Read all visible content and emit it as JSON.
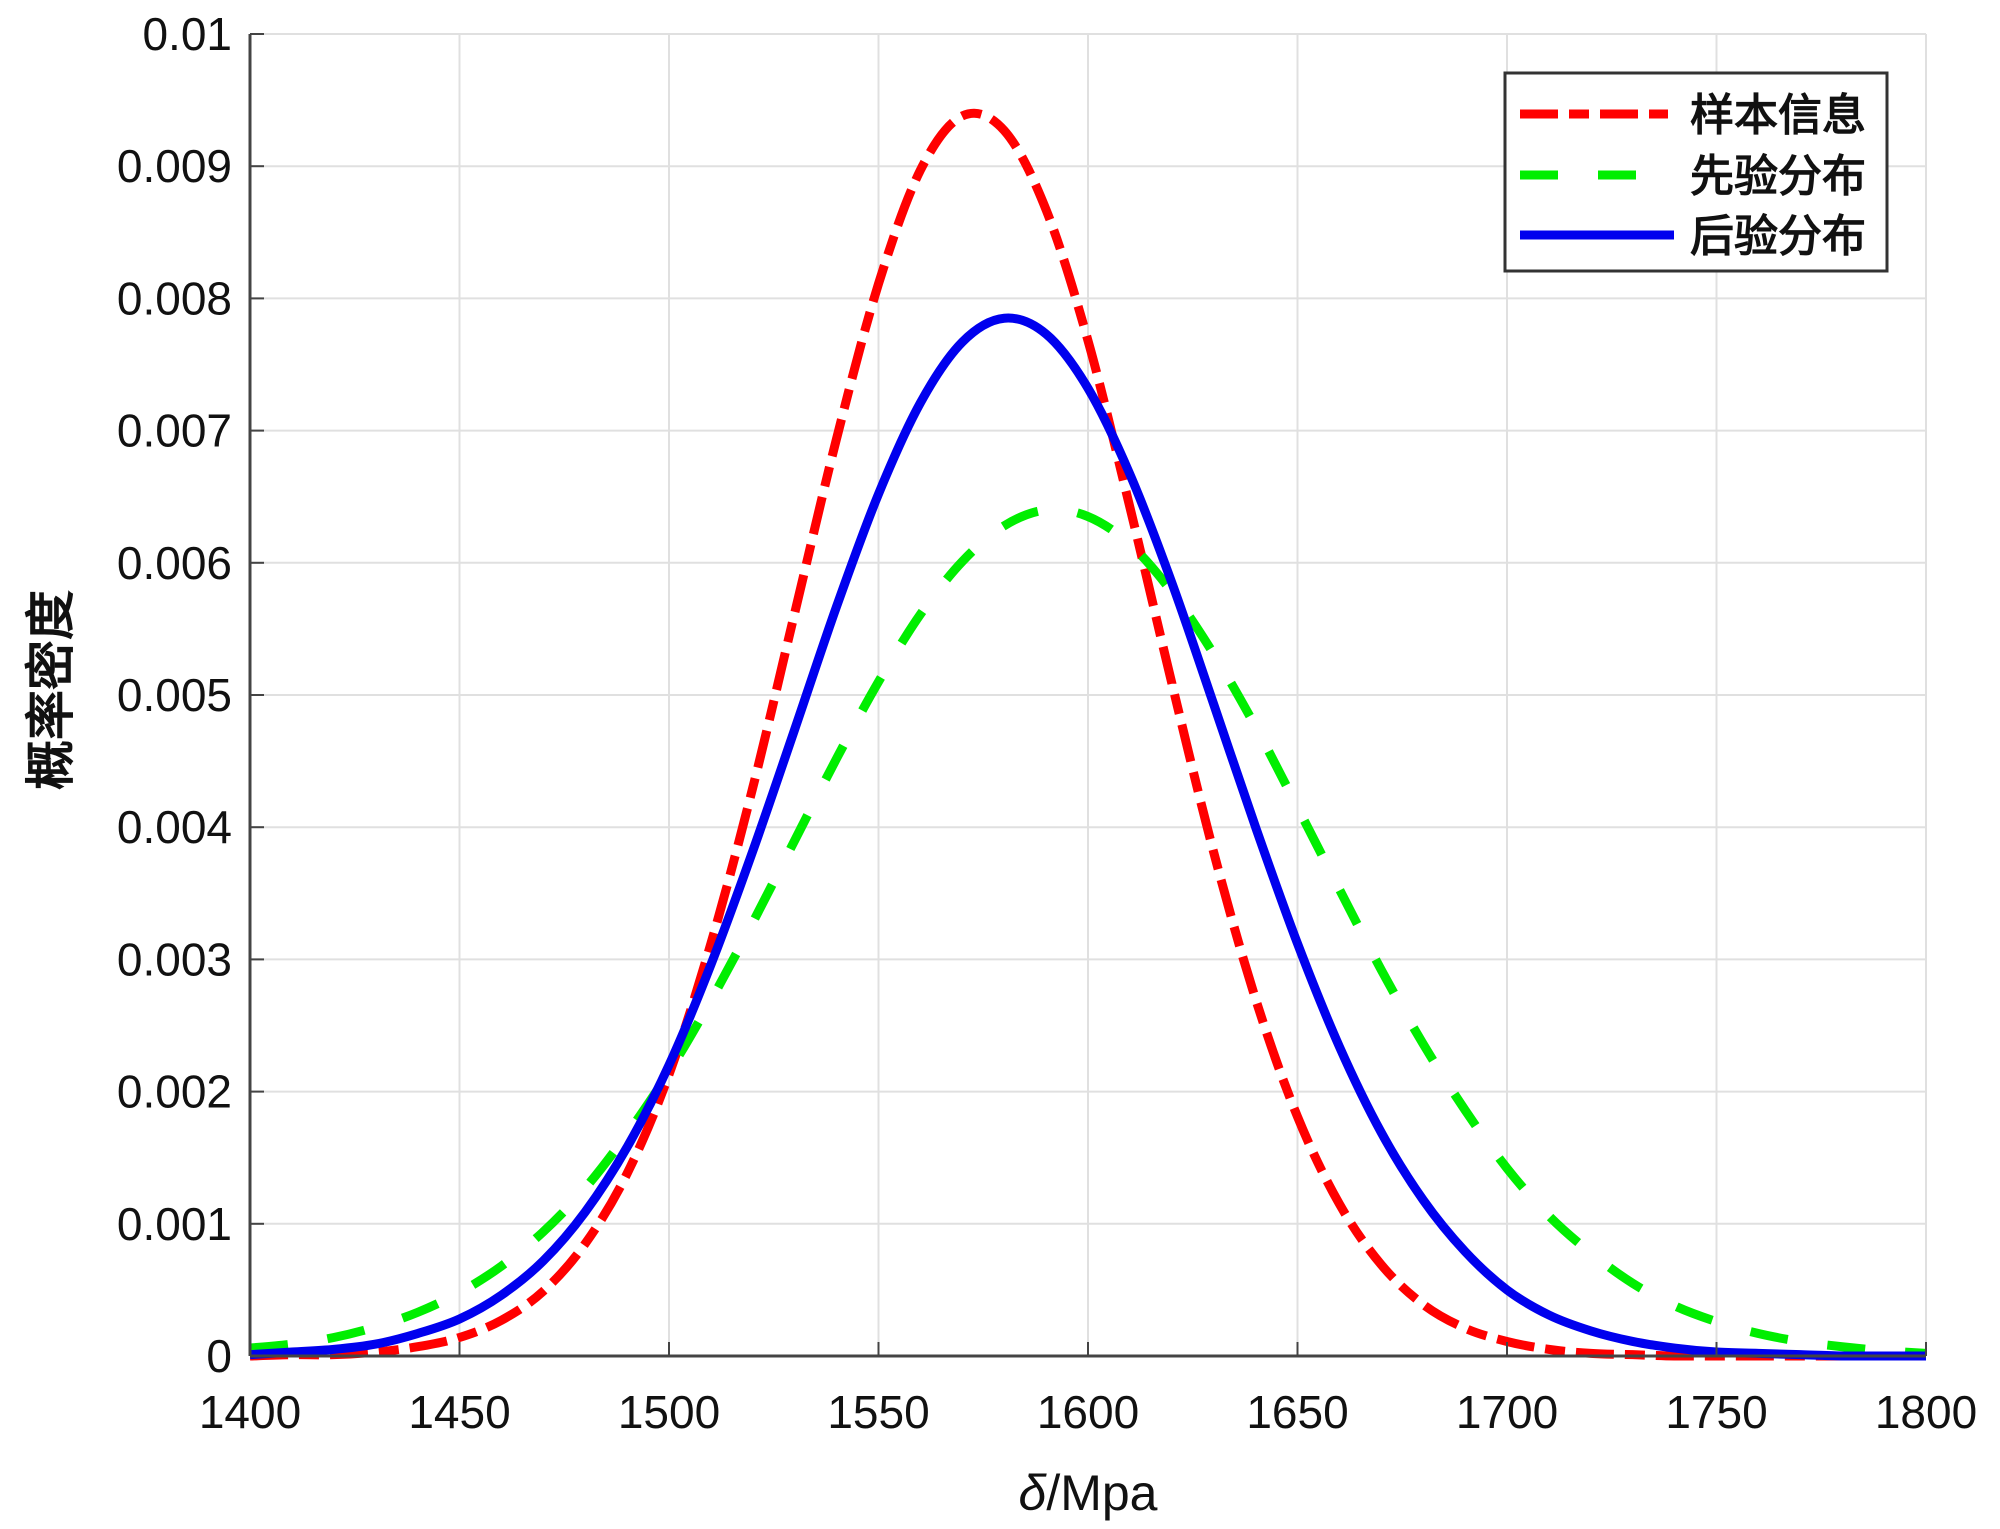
{
  "chart_data": {
    "type": "line",
    "xlabel_symbol": "δ",
    "xlabel_unit": "/Mpa",
    "ylabel": "概率密度",
    "xlim": [
      1400,
      1800
    ],
    "ylim": [
      0,
      0.01
    ],
    "x_ticks": [
      "1400",
      "1450",
      "1500",
      "1550",
      "1600",
      "1650",
      "1700",
      "1750",
      "1800"
    ],
    "y_ticks": [
      "0",
      "0.001",
      "0.002",
      "0.003",
      "0.004",
      "0.005",
      "0.006",
      "0.007",
      "0.008",
      "0.009",
      "0.01"
    ],
    "grid": true,
    "legend_position": "top-right",
    "x": [
      1400,
      1410,
      1420,
      1430,
      1440,
      1450,
      1460,
      1470,
      1480,
      1490,
      1500,
      1510,
      1520,
      1530,
      1540,
      1550,
      1560,
      1570,
      1580,
      1590,
      1600,
      1610,
      1620,
      1630,
      1640,
      1650,
      1660,
      1670,
      1680,
      1690,
      1700,
      1710,
      1720,
      1730,
      1740,
      1750,
      1760,
      1770,
      1780,
      1790,
      1800
    ],
    "series": [
      {
        "name": "样本信息",
        "color": "#ff0000",
        "style": "dash-dot",
        "values": [
          0,
          1e-05,
          1e-05,
          3e-05,
          7e-05,
          0.00014,
          0.00027,
          0.00049,
          0.00085,
          0.00138,
          0.00213,
          0.00312,
          0.0043,
          0.00562,
          0.00694,
          0.00811,
          0.00897,
          0.00938,
          0.00927,
          0.00867,
          0.00768,
          0.00642,
          0.00509,
          0.00381,
          0.0027,
          0.00181,
          0.00115,
          0.00069,
          0.00039,
          0.00021,
          0.00011,
          5e-05,
          2e-05,
          1e-05,
          0,
          0,
          0,
          0,
          0,
          0,
          0
        ]
      },
      {
        "name": "先验分布",
        "color": "#00ee00",
        "style": "dashed",
        "values": [
          6e-05,
          9e-05,
          0.00014,
          0.00022,
          0.00033,
          0.00048,
          0.00068,
          0.00094,
          0.00127,
          0.00168,
          0.00215,
          0.00269,
          0.00328,
          0.0039,
          0.00452,
          0.0051,
          0.00561,
          0.00601,
          0.00628,
          0.0064,
          0.00635,
          0.00614,
          0.00578,
          0.00531,
          0.00476,
          0.00415,
          0.00353,
          0.00292,
          0.00236,
          0.00186,
          0.00142,
          0.00106,
          0.00078,
          0.00055,
          0.00038,
          0.00026,
          0.00017,
          0.00011,
          7e-05,
          4e-05,
          2e-05
        ]
      },
      {
        "name": "后验分布",
        "color": "#0000ee",
        "style": "solid",
        "values": [
          1e-05,
          3e-05,
          5e-05,
          9e-05,
          0.00017,
          0.00028,
          0.00046,
          0.00072,
          0.00109,
          0.00158,
          0.0022,
          0.00296,
          0.00382,
          0.00474,
          0.00567,
          0.00652,
          0.00721,
          0.00767,
          0.00785,
          0.00773,
          0.00732,
          0.00667,
          0.00585,
          0.00493,
          0.004,
          0.00312,
          0.00234,
          0.00169,
          0.00118,
          0.00079,
          0.0005,
          0.00031,
          0.00019,
          0.00011,
          6e-05,
          3e-05,
          2e-05,
          1e-05,
          0,
          0,
          0
        ]
      }
    ]
  }
}
